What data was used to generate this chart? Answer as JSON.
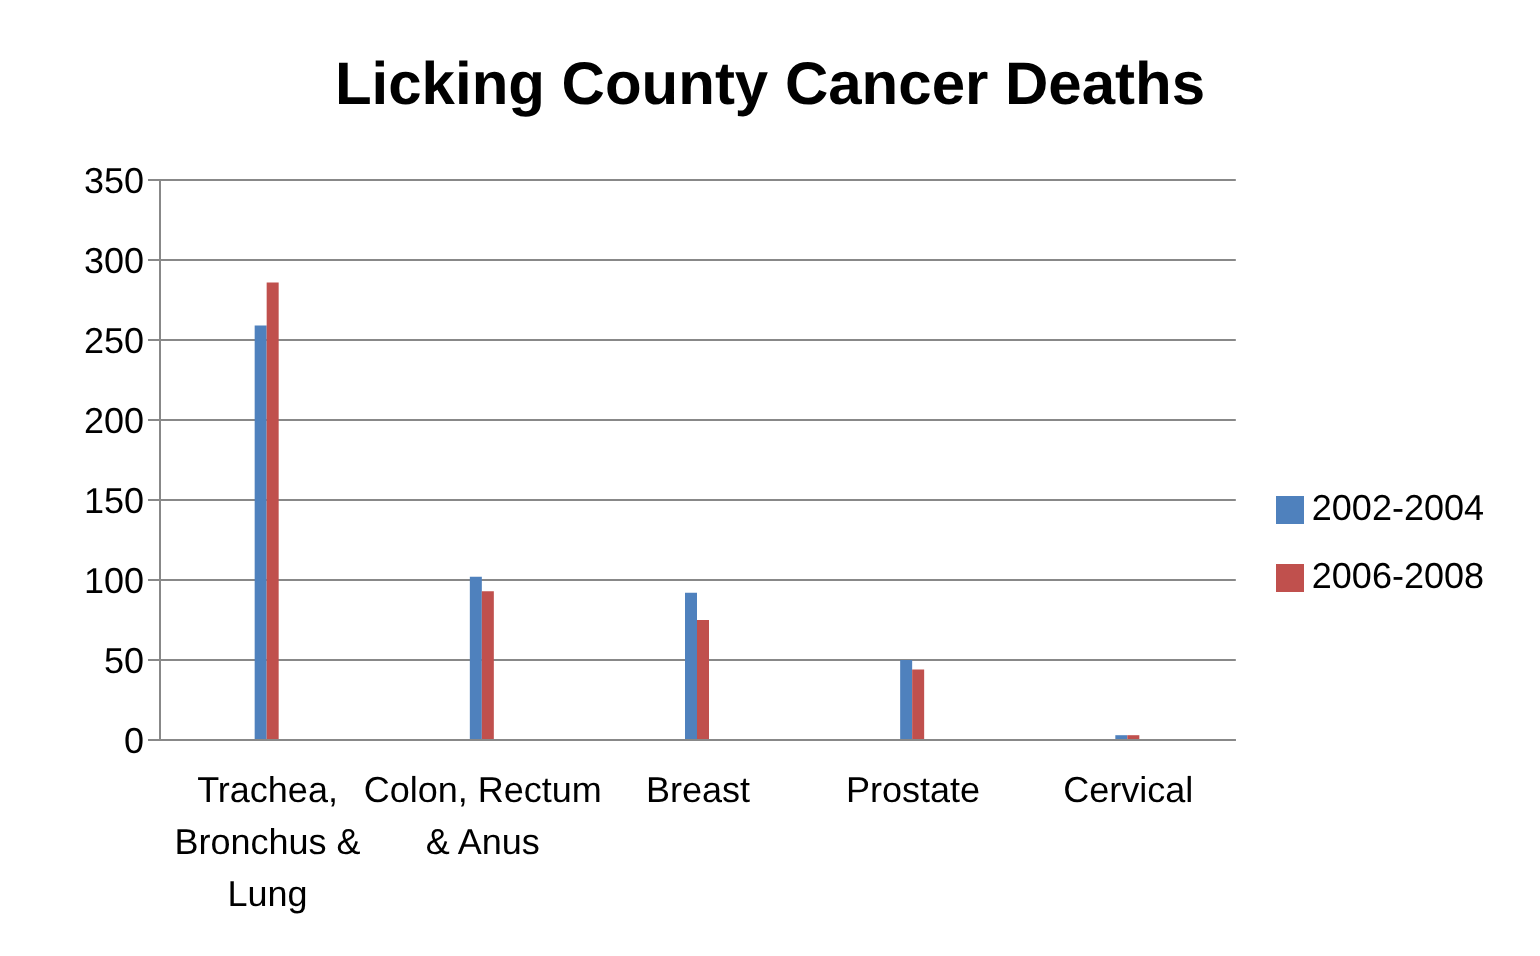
{
  "chart_data": {
    "type": "bar",
    "title": "Licking County Cancer Deaths",
    "categories": [
      "Trachea, Bronchus & Lung",
      "Colon, Rectum & Anus",
      "Breast",
      "Prostate",
      "Cervical"
    ],
    "series": [
      {
        "name": "2002-2004",
        "color": "#4f81bd",
        "values": [
          259,
          102,
          92,
          50,
          3
        ]
      },
      {
        "name": "2006-2008",
        "color": "#c0504d",
        "values": [
          286,
          93,
          75,
          44,
          3
        ]
      }
    ],
    "ylim": [
      0,
      350
    ],
    "yticks": [
      0,
      50,
      100,
      150,
      200,
      250,
      300,
      350
    ],
    "grid": "y",
    "legend": "right"
  }
}
